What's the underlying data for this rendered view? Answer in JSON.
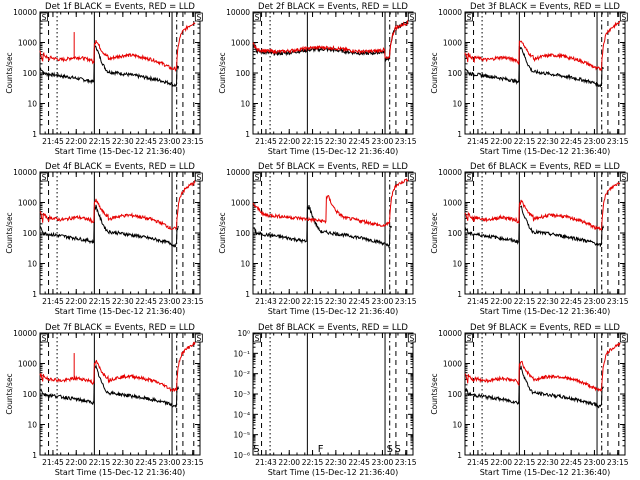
{
  "chart_data": [
    {
      "type": "line",
      "title": "Det 1f BLACK = Events, RED = LLD",
      "xlabel": "Start Time (15-Dec-12 21:36:40)",
      "ylabel": "Counts/sec",
      "yscale": "log",
      "ylim": [
        1,
        10000
      ],
      "yticks": [
        "1",
        "10",
        "100",
        "1000",
        "10000"
      ],
      "xticks": [
        "21:45",
        "22:00",
        "22:15",
        "22:30",
        "22:45",
        "23:00",
        "23:15"
      ],
      "box_labels": [
        {
          "text": "S",
          "x": 0.4
        },
        {
          "text": "S",
          "x": 137
        }
      ],
      "red_profile": "standard",
      "black_profile": "standard",
      "spike": true
    },
    {
      "type": "line",
      "title": "Det 2f BLACK = Events, RED = LLD",
      "xlabel": "Start Time (15-Dec-12 21:36:40)",
      "ylabel": "Counts/sec",
      "yscale": "log",
      "ylim": [
        1,
        10000
      ],
      "yticks": [
        "1",
        "10",
        "100",
        "1000",
        "10000"
      ],
      "xticks": [
        "21:45",
        "22:00",
        "22:15",
        "22:30",
        "22:45",
        "23:00",
        "23:15"
      ],
      "box_labels": [
        {
          "text": "S",
          "x": 0.4
        },
        {
          "text": "S",
          "x": 137
        }
      ],
      "red_profile": "flat_high",
      "black_profile": "flat_high",
      "spike": false
    },
    {
      "type": "line",
      "title": "Det 3f BLACK = Events, RED = LLD",
      "xlabel": "Start Time (15-Dec-12 21:36:40)",
      "ylabel": "Counts/sec",
      "yscale": "log",
      "ylim": [
        1,
        10000
      ],
      "yticks": [
        "1",
        "10",
        "100",
        "1000",
        "10000"
      ],
      "xticks": [
        "21:45",
        "22:00",
        "22:15",
        "22:30",
        "22:45",
        "23:00",
        "23:15"
      ],
      "box_labels": [
        {
          "text": "S",
          "x": 0.4
        },
        {
          "text": "S",
          "x": 137
        }
      ],
      "red_profile": "standard",
      "black_profile": "standard",
      "spike": false
    },
    {
      "type": "line",
      "title": "Det 4f BLACK = Events, RED = LLD",
      "xlabel": "Start Time (15-Dec-12 21:36:40)",
      "ylabel": "Counts/sec",
      "yscale": "log",
      "ylim": [
        1,
        10000
      ],
      "yticks": [
        "1",
        "10",
        "100",
        "1000",
        "10000"
      ],
      "xticks": [
        "21:45",
        "22:00",
        "22:15",
        "22:30",
        "22:45",
        "23:00",
        "23:15"
      ],
      "box_labels": [
        {
          "text": "S",
          "x": 0.4
        },
        {
          "text": "S",
          "x": 137
        }
      ],
      "red_profile": "standard",
      "black_profile": "standard",
      "spike": false
    },
    {
      "type": "line",
      "title": "Det 5f BLACK = Events, RED = LLD",
      "xlabel": "Start Time (15-Dec-12 21:36:40)",
      "ylabel": "Counts/sec",
      "yscale": "log",
      "ylim": [
        1,
        10000
      ],
      "yticks": [
        "1",
        "10",
        "100",
        "1000",
        "10000"
      ],
      "xticks": [
        "21:43",
        "22:00",
        "22:15",
        "22:30",
        "22:45",
        "23:00",
        "23:15"
      ],
      "box_labels": [
        {
          "text": "S",
          "x": 0.4
        },
        {
          "text": "S",
          "x": 137
        }
      ],
      "red_profile": "det5",
      "black_profile": "standard",
      "spike": false
    },
    {
      "type": "line",
      "title": "Det 6f BLACK = Events, RED = LLD",
      "xlabel": "Start Time (15-Dec-12 21:36:40)",
      "ylabel": "Counts/sec",
      "yscale": "log",
      "ylim": [
        1,
        10000
      ],
      "yticks": [
        "1",
        "10",
        "100",
        "1000",
        "10000"
      ],
      "xticks": [
        "21:45",
        "22:00",
        "22:15",
        "22:30",
        "22:45",
        "23:00",
        "23:15"
      ],
      "box_labels": [
        {
          "text": "S",
          "x": 0.4
        },
        {
          "text": "S",
          "x": 137
        }
      ],
      "red_profile": "standard",
      "black_profile": "standard",
      "spike": false
    },
    {
      "type": "line",
      "title": "Det 7f BLACK = Events, RED = LLD",
      "xlabel": "Start Time (15-Dec-12 21:36:40)",
      "ylabel": "Counts/sec",
      "yscale": "log",
      "ylim": [
        1,
        10000
      ],
      "yticks": [
        "1",
        "10",
        "100",
        "1000",
        "10000"
      ],
      "xticks": [
        "21:45",
        "22:00",
        "22:15",
        "22:30",
        "22:45",
        "23:00",
        "23:15"
      ],
      "box_labels": [
        {
          "text": "S",
          "x": 0.4
        },
        {
          "text": "S",
          "x": 137
        }
      ],
      "red_profile": "standard",
      "black_profile": "standard",
      "spike": true
    },
    {
      "type": "line",
      "title": "Det 8f BLACK = Events, RED = LLD",
      "xlabel": "Start Time (15-Dec-12 21:36:40)",
      "ylabel": "",
      "yscale": "log",
      "ylim": [
        1e-06,
        1
      ],
      "yticks": [
        "10⁰",
        "10⁻¹",
        "10⁻²",
        "10⁻³",
        "10⁻⁴",
        "10⁻⁵",
        "10⁻⁶"
      ],
      "xticks": [
        "21:43",
        "22:00",
        "22:15",
        "22:30",
        "22:45",
        "23:00",
        "23:15"
      ],
      "box_labels": [
        {
          "text": "S",
          "x": 0.4
        },
        {
          "text": "S",
          "x": 137
        }
      ],
      "bottom_labels": [
        {
          "text": "S",
          "x": 0.4
        },
        {
          "text": "F",
          "x": 57
        },
        {
          "text": "S",
          "x": 118
        },
        {
          "text": "S",
          "x": 125
        }
      ],
      "red_profile": "none",
      "black_profile": "none",
      "spike": false
    },
    {
      "type": "line",
      "title": "Det 9f BLACK = Events, RED = LLD",
      "xlabel": "Start Time (15-Dec-12 21:36:40)",
      "ylabel": "Counts/sec",
      "yscale": "log",
      "ylim": [
        1,
        10000
      ],
      "yticks": [
        "1",
        "10",
        "100",
        "1000",
        "10000"
      ],
      "xticks": [
        "21:45",
        "22:00",
        "22:15",
        "22:30",
        "22:45",
        "23:00",
        "23:15"
      ],
      "box_labels": [
        {
          "text": "S",
          "x": 0.4
        },
        {
          "text": "S",
          "x": 137
        }
      ],
      "red_profile": "standard",
      "black_profile": "standard",
      "spike": false
    }
  ],
  "colors": {
    "events": "#000000",
    "lld": "#e60000",
    "background": "#ffffff"
  }
}
